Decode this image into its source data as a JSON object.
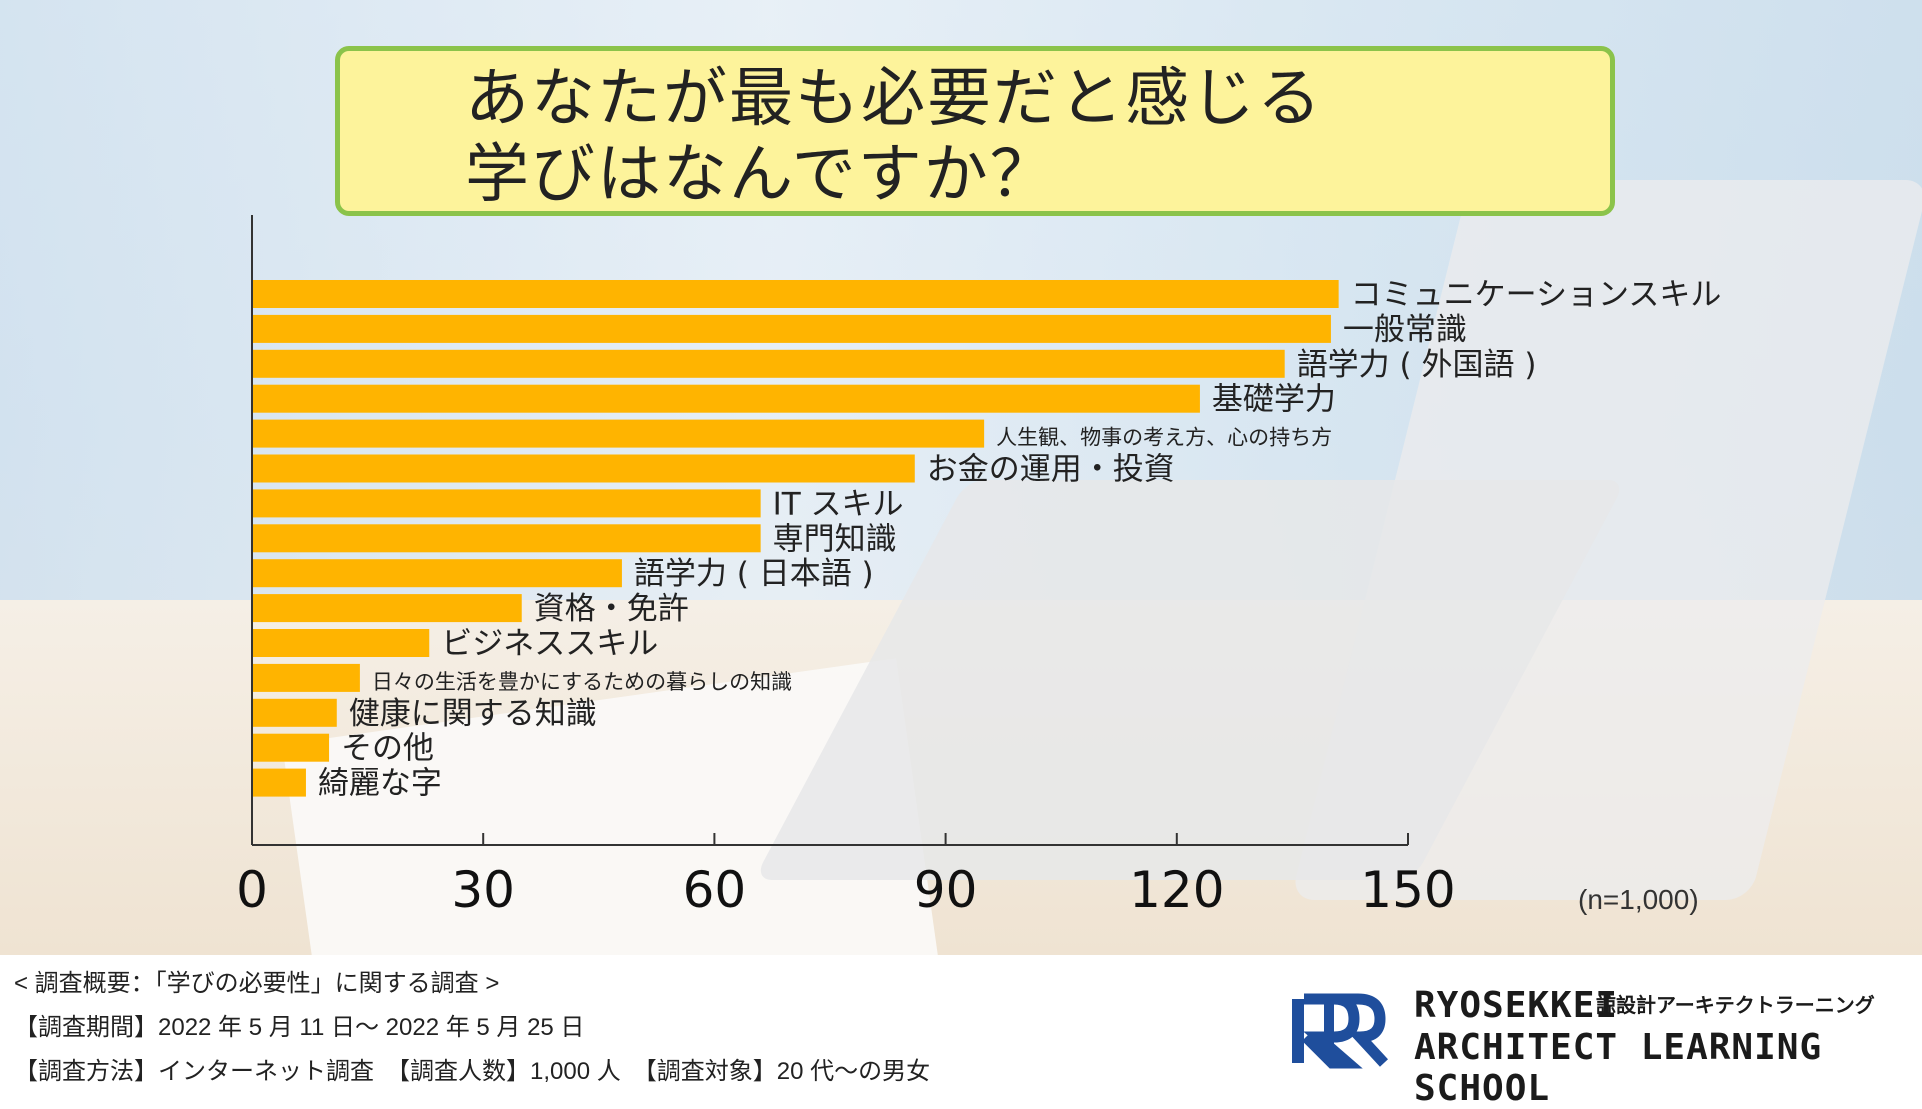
{
  "title_lines": [
    "あなたが最も必要だと感じる",
    "学びはなんですか？"
  ],
  "chart_data": {
    "type": "bar",
    "orientation": "horizontal",
    "title": "あなたが最も必要だと感じる学びはなんですか？",
    "categories": [
      "コミュニケーションスキル",
      "一般常識",
      "語学力 ( 外国語 )",
      "基礎学力",
      "人生観、物事の考え方、心の持ち方",
      "お金の運用・投資",
      "IT スキル",
      "専門知識",
      "語学力 ( 日本語 )",
      "資格・免許",
      "ビジネススキル",
      "日々の生活を豊かにするための暮らしの知識",
      "健康に関する知識",
      "その他",
      "綺麗な字"
    ],
    "values": [
      141,
      140,
      134,
      123,
      95,
      86,
      66,
      66,
      48,
      35,
      23,
      14,
      11,
      10,
      7
    ],
    "xlim": [
      0,
      150
    ],
    "xticks": [
      "0",
      "30",
      "60",
      "90",
      "120",
      "150"
    ],
    "xlabel": "",
    "ylabel": "",
    "bar_color": "#ffb400"
  },
  "note": "(n=1,000)",
  "footer": {
    "line1": "< 調査概要：「学びの必要性」に関する調査 >",
    "line2": "【調査期間】2022 年 5 月 11 日～ 2022 年 5 月 25 日",
    "line3": "【調査方法】インターネット調査　【調査人数】1,000 人　【調査対象】20 代～の男女"
  },
  "logo": {
    "mark": "RR",
    "line1": "RYOSEKKEI",
    "jp": "諒設計アーキテクトラーニング",
    "line2": "ARCHITECT LEARNING SCHOOL",
    "brand_color": "#1f4e9c"
  }
}
